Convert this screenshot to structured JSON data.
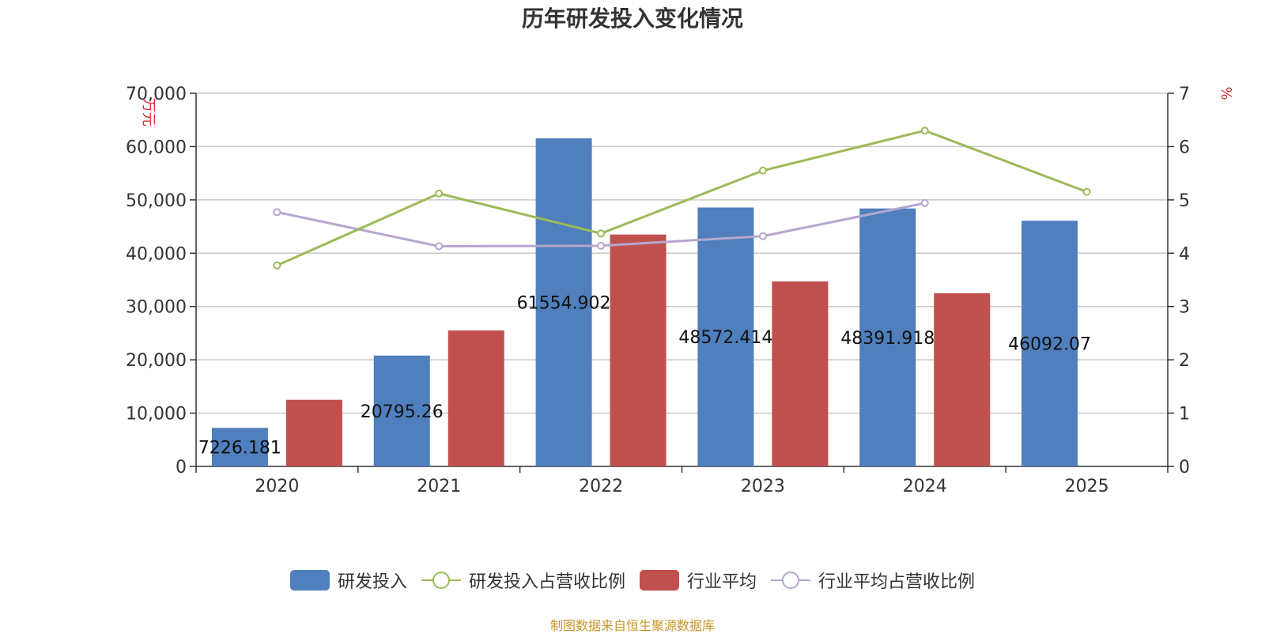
{
  "colors": {
    "rd_bar": "#4f7fbd",
    "industry_bar": "#c0504d",
    "rd_ratio_line": "#9bbb59",
    "industry_ratio_line": "#b6a6d0",
    "axis_unit": "#e03030",
    "source_text": "#c8962a"
  },
  "chart_data": {
    "type": "bar",
    "title": "历年研发投入变化情况",
    "categories": [
      "2020",
      "2021",
      "2022",
      "2023",
      "2024",
      "2025"
    ],
    "y_left": {
      "label": "万元",
      "range": [
        0,
        70000
      ],
      "ticks": [
        "0",
        "10,000",
        "20,000",
        "30,000",
        "40,000",
        "50,000",
        "60,000",
        "70,000"
      ]
    },
    "y_right": {
      "label": "%",
      "range": [
        0,
        7
      ],
      "ticks": [
        "0",
        "1",
        "2",
        "3",
        "4",
        "5",
        "6",
        "7"
      ]
    },
    "grid": true,
    "legend_position": "bottom",
    "series": [
      {
        "name": "研发投入",
        "type": "bar",
        "axis": "left",
        "values": [
          7226.181,
          20795.26,
          61554.902,
          48572.414,
          48391.918,
          46092.07
        ],
        "data_labels": [
          "7226.181",
          "20795.26",
          "61554.902",
          "48572.414",
          "48391.918",
          "46092.07"
        ]
      },
      {
        "name": "研发投入占营收比例",
        "type": "line",
        "axis": "right",
        "values": [
          3.77,
          5.12,
          4.37,
          5.55,
          6.3,
          5.15
        ]
      },
      {
        "name": "行业平均",
        "type": "bar",
        "axis": "left",
        "values": [
          12500,
          25500,
          43500,
          34700,
          32500,
          null
        ]
      },
      {
        "name": "行业平均占营收比例",
        "type": "line",
        "axis": "right",
        "values": [
          4.77,
          4.13,
          4.14,
          4.32,
          4.94,
          null
        ]
      }
    ]
  },
  "source": "制图数据来自恒生聚源数据库"
}
